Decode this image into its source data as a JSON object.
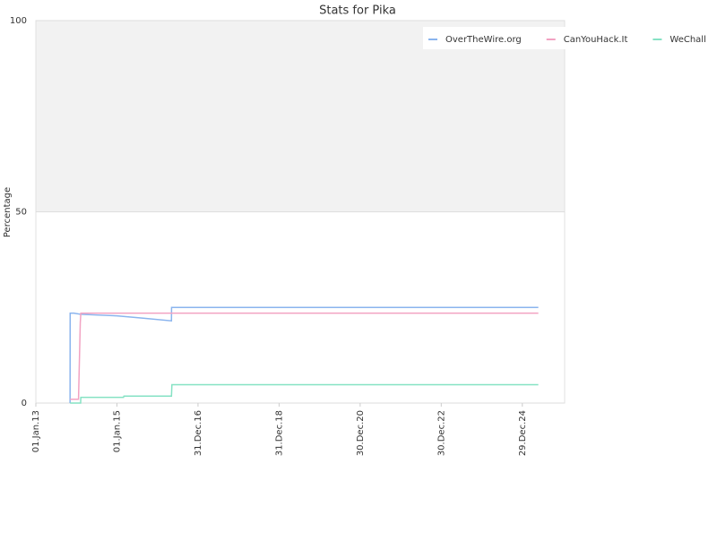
{
  "chart_data": {
    "type": "line",
    "title": "Stats for Pika",
    "y_label": "Percentage",
    "ylim": [
      0,
      100
    ],
    "yticks": [
      0,
      50,
      100
    ],
    "grid": true,
    "shaded_band": [
      50,
      100
    ],
    "legend": "top-right",
    "xlim": [
      "2013-01-01",
      "2026-01-14"
    ],
    "xticks": [
      {
        "value": "2013-01-01",
        "label": "01.Jan.13"
      },
      {
        "value": "2015-01-01",
        "label": "01.Jan.15"
      },
      {
        "value": "2016-12-31",
        "label": "31.Dec.16"
      },
      {
        "value": "2018-12-31",
        "label": "31.Dec.18"
      },
      {
        "value": "2020-12-30",
        "label": "30.Dec.20"
      },
      {
        "value": "2022-12-30",
        "label": "30.Dec.22"
      },
      {
        "value": "2024-12-29",
        "label": "29.Dec.24"
      }
    ],
    "series": [
      {
        "name": "OverTheWire.org",
        "color": "#8ab4ee",
        "x": [
          "2013-11-05",
          "2013-11-06",
          "2013-12-10",
          "2014-02-10",
          "2015-01-01",
          "2015-08-27",
          "2016-05-06",
          "2016-05-07",
          "2025-05-22"
        ],
        "values": [
          0,
          23.5,
          23.5,
          23.2,
          22.8,
          22.2,
          21.5,
          25,
          25
        ]
      },
      {
        "name": "CanYouHack.It",
        "color": "#f2a2c2",
        "x": [
          "2013-11-05",
          "2014-01-20",
          "2014-02-05",
          "2014-02-10",
          "2025-05-22"
        ],
        "values": [
          1,
          1,
          21,
          23.5,
          23.5
        ]
      },
      {
        "name": "WeChall",
        "color": "#86e2c4",
        "x": [
          "2013-11-05",
          "2014-02-08",
          "2014-02-10",
          "2015-03-01",
          "2015-03-05",
          "2016-05-06",
          "2016-05-10",
          "2025-05-22"
        ],
        "values": [
          0,
          0,
          1.5,
          1.5,
          1.8,
          1.8,
          4.8,
          4.8
        ]
      }
    ]
  }
}
